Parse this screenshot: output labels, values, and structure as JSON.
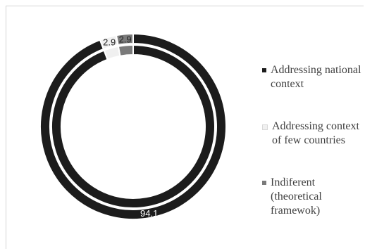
{
  "chart_data": {
    "type": "pie",
    "subtype": "doughnut",
    "title": "",
    "categories": [
      "Addressing national context",
      "Addressing context of few countries",
      "Indiferent (theoretical framewok)"
    ],
    "series": [
      {
        "values": [
          94.1,
          2.9,
          2.9
        ]
      },
      {
        "values": [
          94.1,
          2.9,
          2.9
        ]
      }
    ],
    "data_labels": [
      "94.1",
      "2.9",
      "2.9"
    ],
    "colors": [
      "#1c1c1c",
      "#f0f0f0",
      "#7a7a7a"
    ],
    "legend_position": "right"
  },
  "legend": {
    "items": [
      {
        "label": "Addressing national context",
        "color": "#1c1c1c"
      },
      {
        "label": "Addressing context of few countries",
        "color": "#f0f0f0"
      },
      {
        "label": "Indiferent (theoretical framewok)",
        "color": "#7a7a7a"
      }
    ]
  }
}
